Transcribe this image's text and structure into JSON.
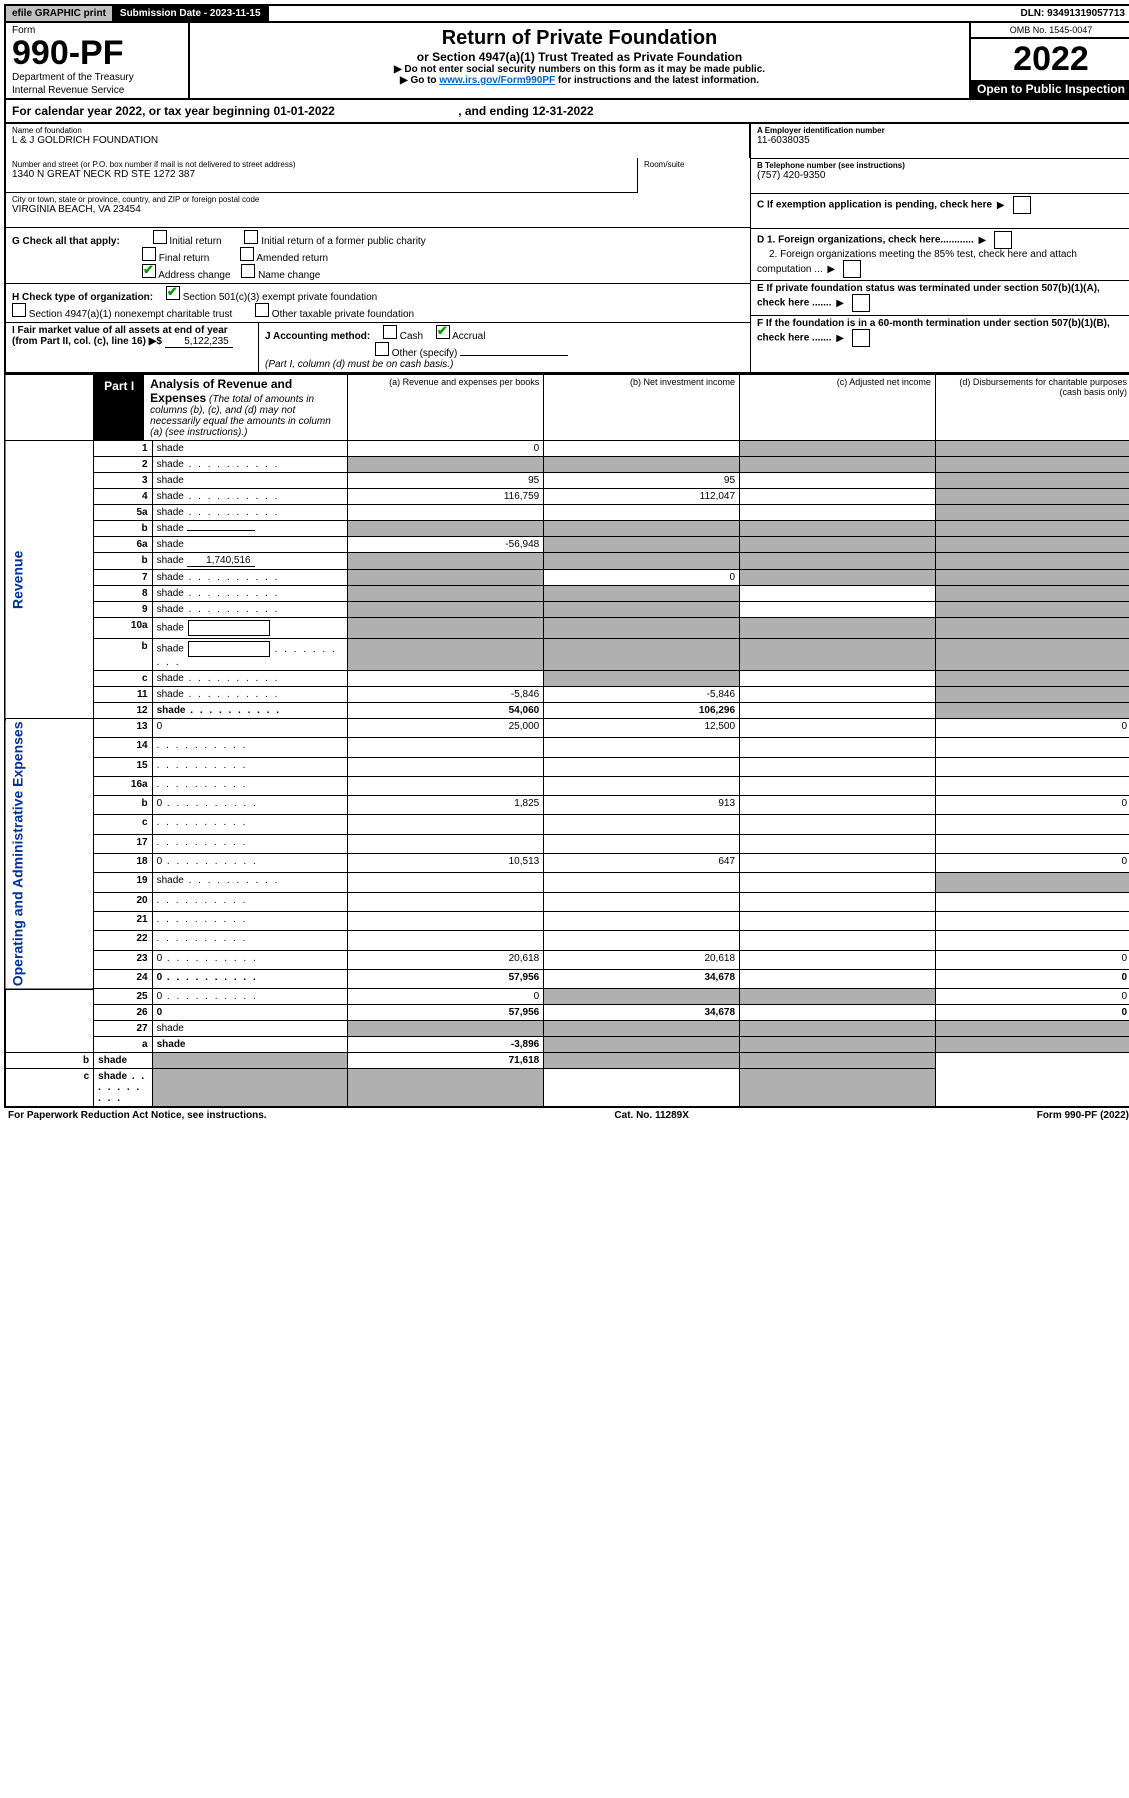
{
  "topbar": {
    "efile": "efile GRAPHIC print",
    "sub_label": "Submission Date - 2023-11-15",
    "dln": "DLN: 93491319057713"
  },
  "header": {
    "form": "Form",
    "form_num": "990-PF",
    "dept1": "Department of the Treasury",
    "dept2": "Internal Revenue Service",
    "title": "Return of Private Foundation",
    "subtitle": "or Section 4947(a)(1) Trust Treated as Private Foundation",
    "note1": "▶ Do not enter social security numbers on this form as it may be made public.",
    "note2_pre": "▶ Go to ",
    "note2_link": "www.irs.gov/Form990PF",
    "note2_post": " for instructions and the latest information.",
    "omb": "OMB No. 1545-0047",
    "year": "2022",
    "inspect": "Open to Public Inspection"
  },
  "calyear": {
    "text_pre": "For calendar year 2022, or tax year beginning ",
    "begin": "01-01-2022",
    "text_mid": " , and ending ",
    "end": "12-31-2022"
  },
  "info": {
    "name_label": "Name of foundation",
    "name": "L & J GOLDRICH FOUNDATION",
    "addr_label": "Number and street (or P.O. box number if mail is not delivered to street address)",
    "addr": "1340 N GREAT NECK RD STE 1272 387",
    "room_label": "Room/suite",
    "city_label": "City or town, state or province, country, and ZIP or foreign postal code",
    "city": "VIRGINIA BEACH, VA  23454",
    "a_label": "A Employer identification number",
    "a_val": "11-6038035",
    "b_label": "B Telephone number (see instructions)",
    "b_val": "(757) 420-9350",
    "c_label": "C If exemption application is pending, check here",
    "d1": "D 1. Foreign organizations, check here............",
    "d2": "2. Foreign organizations meeting the 85% test, check here and attach computation ...",
    "e_label": "E  If private foundation status was terminated under section 507(b)(1)(A), check here .......",
    "f_label": "F  If the foundation is in a 60-month termination under section 507(b)(1)(B), check here .......",
    "g_label": "G Check all that apply:",
    "g_opts": [
      "Initial return",
      "Initial return of a former public charity",
      "Final return",
      "Amended return",
      "Address change",
      "Name change"
    ],
    "h_label": "H Check type of organization:",
    "h_opts": [
      "Section 501(c)(3) exempt private foundation",
      "Section 4947(a)(1) nonexempt charitable trust",
      "Other taxable private foundation"
    ],
    "i_label": "I Fair market value of all assets at end of year (from Part II, col. (c), line 16) ▶$ ",
    "i_val": "5,122,235",
    "j_label": "J Accounting method:",
    "j_opts": [
      "Cash",
      "Accrual",
      "Other (specify)"
    ],
    "j_note": "(Part I, column (d) must be on cash basis.)"
  },
  "part1": {
    "label": "Part I",
    "title": "Analysis of Revenue and Expenses",
    "title_note": "(The total of amounts in columns (b), (c), and (d) may not necessarily equal the amounts in column (a) (see instructions).)",
    "col_a": "(a)   Revenue and expenses per books",
    "col_b": "(b)   Net investment income",
    "col_c": "(c)   Adjusted net income",
    "col_d": "(d)   Disbursements for charitable purposes (cash basis only)",
    "side_rev": "Revenue",
    "side_exp": "Operating and Administrative Expenses"
  },
  "rows": [
    {
      "n": "1",
      "d": "shade",
      "a": "0",
      "b": "",
      "c": "shade"
    },
    {
      "n": "2",
      "d": "shade",
      "a": "shade",
      "b": "shade",
      "c": "shade",
      "dots": true
    },
    {
      "n": "3",
      "d": "shade",
      "a": "95",
      "b": "95",
      "c": ""
    },
    {
      "n": "4",
      "d": "shade",
      "a": "116,759",
      "b": "112,047",
      "c": "",
      "dots": true
    },
    {
      "n": "5a",
      "d": "shade",
      "a": "",
      "b": "",
      "c": "",
      "dots": true
    },
    {
      "n": "b",
      "d": "shade",
      "a": "shade",
      "b": "shade",
      "c": "shade",
      "fill": ""
    },
    {
      "n": "6a",
      "d": "shade",
      "a": "-56,948",
      "b": "shade",
      "c": "shade"
    },
    {
      "n": "b",
      "d": "shade",
      "a": "shade",
      "b": "shade",
      "c": "shade",
      "fill": "1,740,516"
    },
    {
      "n": "7",
      "d": "shade",
      "a": "shade",
      "b": "0",
      "c": "shade",
      "dots": true
    },
    {
      "n": "8",
      "d": "shade",
      "a": "shade",
      "b": "shade",
      "c": "",
      "dots": true
    },
    {
      "n": "9",
      "d": "shade",
      "a": "shade",
      "b": "shade",
      "c": "",
      "dots": true
    },
    {
      "n": "10a",
      "d": "shade",
      "a": "shade",
      "b": "shade",
      "c": "shade",
      "box": true
    },
    {
      "n": "b",
      "d": "shade",
      "a": "shade",
      "b": "shade",
      "c": "shade",
      "box": true,
      "dots": true
    },
    {
      "n": "c",
      "d": "shade",
      "a": "",
      "b": "shade",
      "c": "",
      "dots": true
    },
    {
      "n": "11",
      "d": "shade",
      "a": "-5,846",
      "b": "-5,846",
      "c": "",
      "dots": true
    },
    {
      "n": "12",
      "d": "shade",
      "a": "54,060",
      "b": "106,296",
      "c": "",
      "bold": true,
      "dots": true
    },
    {
      "n": "13",
      "d": "0",
      "a": "25,000",
      "b": "12,500",
      "c": ""
    },
    {
      "n": "14",
      "d": "",
      "a": "",
      "b": "",
      "c": "",
      "dots": true
    },
    {
      "n": "15",
      "d": "",
      "a": "",
      "b": "",
      "c": "",
      "dots": true
    },
    {
      "n": "16a",
      "d": "",
      "a": "",
      "b": "",
      "c": "",
      "dots": true
    },
    {
      "n": "b",
      "d": "0",
      "a": "1,825",
      "b": "913",
      "c": "",
      "dots": true
    },
    {
      "n": "c",
      "d": "",
      "a": "",
      "b": "",
      "c": "",
      "dots": true
    },
    {
      "n": "17",
      "d": "",
      "a": "",
      "b": "",
      "c": "",
      "dots": true
    },
    {
      "n": "18",
      "d": "0",
      "a": "10,513",
      "b": "647",
      "c": "",
      "dots": true
    },
    {
      "n": "19",
      "d": "shade",
      "a": "",
      "b": "",
      "c": "",
      "dots": true
    },
    {
      "n": "20",
      "d": "",
      "a": "",
      "b": "",
      "c": "",
      "dots": true
    },
    {
      "n": "21",
      "d": "",
      "a": "",
      "b": "",
      "c": "",
      "dots": true
    },
    {
      "n": "22",
      "d": "",
      "a": "",
      "b": "",
      "c": "",
      "dots": true
    },
    {
      "n": "23",
      "d": "0",
      "a": "20,618",
      "b": "20,618",
      "c": "",
      "dots": true
    },
    {
      "n": "24",
      "d": "0",
      "a": "57,956",
      "b": "34,678",
      "c": "",
      "bold": true,
      "dots": true
    },
    {
      "n": "25",
      "d": "0",
      "a": "0",
      "b": "shade",
      "c": "shade",
      "dots": true
    },
    {
      "n": "26",
      "d": "0",
      "a": "57,956",
      "b": "34,678",
      "c": "",
      "bold": true
    },
    {
      "n": "27",
      "d": "shade",
      "a": "shade",
      "b": "shade",
      "c": "shade"
    },
    {
      "n": "a",
      "d": "shade",
      "a": "-3,896",
      "b": "shade",
      "c": "shade",
      "bold": true
    },
    {
      "n": "b",
      "d": "shade",
      "a": "shade",
      "b": "71,618",
      "c": "shade",
      "bold": true
    },
    {
      "n": "c",
      "d": "shade",
      "a": "shade",
      "b": "shade",
      "c": "",
      "bold": true,
      "dots": true
    }
  ],
  "footer": {
    "left": "For Paperwork Reduction Act Notice, see instructions.",
    "mid": "Cat. No. 11289X",
    "right": "Form 990-PF (2022)"
  }
}
